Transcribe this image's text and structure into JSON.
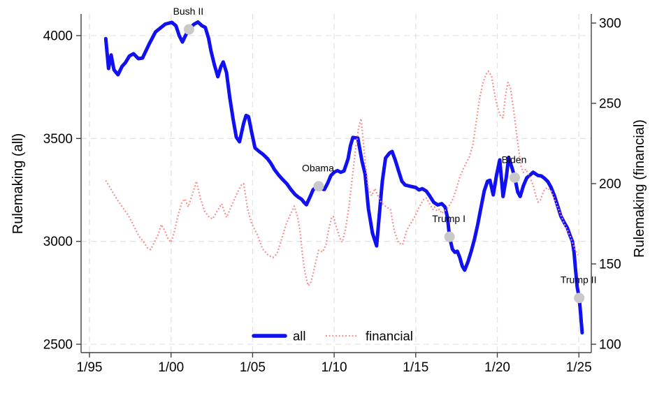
{
  "figure": {
    "background": "#ffffff"
  },
  "chart_data": {
    "type": "line",
    "title": "",
    "x_axis": {
      "tick_values": [
        1995,
        2000,
        2005,
        2010,
        2015,
        2020,
        2025
      ],
      "tick_labels": [
        "1/95",
        "1/00",
        "1/05",
        "1/10",
        "1/15",
        "1/20",
        "1/25"
      ],
      "range_years": [
        1994.5,
        2025.8
      ],
      "grid": true
    },
    "y_left_axis": {
      "title": "Rulemaking (all)",
      "tick_values": [
        2500,
        3000,
        3500,
        4000
      ],
      "range": [
        2460,
        4105
      ],
      "grid": true
    },
    "y_right_axis": {
      "title": "Rulemaking (financial)",
      "tick_values": [
        100,
        150,
        200,
        250,
        300
      ],
      "range": [
        95,
        318
      ],
      "grid": false
    },
    "legend": {
      "position": "bottom-center-inside",
      "items": [
        {
          "label": "all",
          "style": "solid",
          "color": "#1010f0"
        },
        {
          "label": "financial",
          "style": "dotted",
          "color": "#f88b8b"
        }
      ]
    },
    "styles": {
      "all_color": "#1010f0",
      "financial_color": "#f88b8b",
      "marker_color": "#c9c9c9",
      "grid_color": "#e3e3e3",
      "axis_color": "#404040",
      "text_color": "#000000"
    },
    "annotations": [
      {
        "label": "Bush II",
        "year": 2001.1,
        "value": 4030
      },
      {
        "label": "Obama",
        "year": 2009.05,
        "value": 3268
      },
      {
        "label": "Trump I",
        "year": 2017.07,
        "value": 3022
      },
      {
        "label": "Biden",
        "year": 2021.07,
        "value": 3310
      },
      {
        "label": "Trump II",
        "year": 2025.02,
        "value": 2725
      }
    ],
    "series": [
      {
        "name": "all",
        "axis": "left",
        "style": "solid",
        "width": 5,
        "color": "#1010f0",
        "points": [
          [
            1996.0,
            3985
          ],
          [
            1996.17,
            3840
          ],
          [
            1996.33,
            3906
          ],
          [
            1996.5,
            3834
          ],
          [
            1996.75,
            3810
          ],
          [
            1997.0,
            3851
          ],
          [
            1997.2,
            3868
          ],
          [
            1997.45,
            3901
          ],
          [
            1997.7,
            3912
          ],
          [
            1998.0,
            3888
          ],
          [
            1998.25,
            3891
          ],
          [
            1998.65,
            3958
          ],
          [
            1999.05,
            4018
          ],
          [
            1999.35,
            4037
          ],
          [
            1999.65,
            4056
          ],
          [
            2000.05,
            4064
          ],
          [
            2000.3,
            4048
          ],
          [
            2000.5,
            4000
          ],
          [
            2000.7,
            3969
          ],
          [
            2000.9,
            4002
          ],
          [
            2001.1,
            4030
          ],
          [
            2001.4,
            4055
          ],
          [
            2001.65,
            4066
          ],
          [
            2001.9,
            4048
          ],
          [
            2002.1,
            4040
          ],
          [
            2002.3,
            3987
          ],
          [
            2002.45,
            3925
          ],
          [
            2002.65,
            3860
          ],
          [
            2002.87,
            3800
          ],
          [
            2003.05,
            3848
          ],
          [
            2003.2,
            3872
          ],
          [
            2003.4,
            3820
          ],
          [
            2003.6,
            3700
          ],
          [
            2003.8,
            3596
          ],
          [
            2004.0,
            3506
          ],
          [
            2004.2,
            3484
          ],
          [
            2004.45,
            3574
          ],
          [
            2004.6,
            3612
          ],
          [
            2004.75,
            3606
          ],
          [
            2004.95,
            3528
          ],
          [
            2005.15,
            3454
          ],
          [
            2005.4,
            3437
          ],
          [
            2005.65,
            3422
          ],
          [
            2005.9,
            3403
          ],
          [
            2006.1,
            3382
          ],
          [
            2006.35,
            3348
          ],
          [
            2006.6,
            3322
          ],
          [
            2006.85,
            3300
          ],
          [
            2007.1,
            3280
          ],
          [
            2007.35,
            3252
          ],
          [
            2007.6,
            3228
          ],
          [
            2007.8,
            3215
          ],
          [
            2008.0,
            3205
          ],
          [
            2008.15,
            3190
          ],
          [
            2008.3,
            3178
          ],
          [
            2008.55,
            3222
          ],
          [
            2008.7,
            3250
          ],
          [
            2008.85,
            3262
          ],
          [
            2009.05,
            3268
          ],
          [
            2009.25,
            3255
          ],
          [
            2009.4,
            3252
          ],
          [
            2009.6,
            3283
          ],
          [
            2009.8,
            3320
          ],
          [
            2010.0,
            3336
          ],
          [
            2010.2,
            3344
          ],
          [
            2010.4,
            3336
          ],
          [
            2010.6,
            3342
          ],
          [
            2010.85,
            3400
          ],
          [
            2011.0,
            3465
          ],
          [
            2011.15,
            3505
          ],
          [
            2011.45,
            3502
          ],
          [
            2011.7,
            3392
          ],
          [
            2011.9,
            3326
          ],
          [
            2012.1,
            3158
          ],
          [
            2012.35,
            3040
          ],
          [
            2012.6,
            2978
          ],
          [
            2012.8,
            3160
          ],
          [
            2012.95,
            3292
          ],
          [
            2013.15,
            3405
          ],
          [
            2013.4,
            3430
          ],
          [
            2013.55,
            3437
          ],
          [
            2013.75,
            3394
          ],
          [
            2013.95,
            3342
          ],
          [
            2014.15,
            3292
          ],
          [
            2014.35,
            3274
          ],
          [
            2014.65,
            3268
          ],
          [
            2015.0,
            3262
          ],
          [
            2015.2,
            3250
          ],
          [
            2015.4,
            3256
          ],
          [
            2015.65,
            3244
          ],
          [
            2015.85,
            3222
          ],
          [
            2016.1,
            3190
          ],
          [
            2016.35,
            3177
          ],
          [
            2016.6,
            3183
          ],
          [
            2016.8,
            3167
          ],
          [
            2016.95,
            3115
          ],
          [
            2017.07,
            3022
          ],
          [
            2017.25,
            2962
          ],
          [
            2017.4,
            2947
          ],
          [
            2017.55,
            2952
          ],
          [
            2017.7,
            2922
          ],
          [
            2017.85,
            2880
          ],
          [
            2018.0,
            2860
          ],
          [
            2018.2,
            2900
          ],
          [
            2018.4,
            2952
          ],
          [
            2018.6,
            3010
          ],
          [
            2018.8,
            3082
          ],
          [
            2019.0,
            3165
          ],
          [
            2019.2,
            3245
          ],
          [
            2019.4,
            3292
          ],
          [
            2019.55,
            3297
          ],
          [
            2019.75,
            3226
          ],
          [
            2019.95,
            3320
          ],
          [
            2020.15,
            3396
          ],
          [
            2020.35,
            3218
          ],
          [
            2020.55,
            3310
          ],
          [
            2020.7,
            3408
          ],
          [
            2020.9,
            3358
          ],
          [
            2021.07,
            3310
          ],
          [
            2021.25,
            3240
          ],
          [
            2021.4,
            3218
          ],
          [
            2021.6,
            3270
          ],
          [
            2021.8,
            3308
          ],
          [
            2022.2,
            3336
          ],
          [
            2022.5,
            3320
          ],
          [
            2022.7,
            3318
          ],
          [
            2022.9,
            3306
          ],
          [
            2023.1,
            3290
          ],
          [
            2023.3,
            3262
          ],
          [
            2023.5,
            3222
          ],
          [
            2023.7,
            3172
          ],
          [
            2023.9,
            3122
          ],
          [
            2024.1,
            3092
          ],
          [
            2024.3,
            3064
          ],
          [
            2024.45,
            3030
          ],
          [
            2024.6,
            3000
          ],
          [
            2024.7,
            2950
          ],
          [
            2024.8,
            2860
          ],
          [
            2024.9,
            2776
          ],
          [
            2025.02,
            2725
          ],
          [
            2025.1,
            2656
          ],
          [
            2025.2,
            2556
          ]
        ]
      },
      {
        "name": "financial",
        "axis": "right",
        "style": "dotted",
        "width": 2.3,
        "color": "#f88b8b",
        "points": [
          [
            1996.0,
            202
          ],
          [
            1996.35,
            196
          ],
          [
            1996.7,
            190
          ],
          [
            1997.05,
            185
          ],
          [
            1997.4,
            180
          ],
          [
            1997.75,
            173
          ],
          [
            1998.05,
            167
          ],
          [
            1998.3,
            164
          ],
          [
            1998.55,
            160
          ],
          [
            1998.75,
            159
          ],
          [
            1999.0,
            164
          ],
          [
            1999.2,
            168
          ],
          [
            1999.4,
            174.5
          ],
          [
            1999.6,
            171
          ],
          [
            1999.8,
            166
          ],
          [
            2000.0,
            163.5
          ],
          [
            2000.2,
            170
          ],
          [
            2000.4,
            179
          ],
          [
            2000.65,
            188
          ],
          [
            2000.85,
            190.5
          ],
          [
            2001.05,
            185.5
          ],
          [
            2001.3,
            193
          ],
          [
            2001.55,
            201.5
          ],
          [
            2001.8,
            191
          ],
          [
            2002.05,
            183
          ],
          [
            2002.3,
            179.5
          ],
          [
            2002.55,
            178
          ],
          [
            2002.8,
            182.5
          ],
          [
            2003.1,
            187.5
          ],
          [
            2003.4,
            179
          ],
          [
            2003.7,
            186
          ],
          [
            2004.0,
            193
          ],
          [
            2004.3,
            199
          ],
          [
            2004.45,
            200
          ],
          [
            2004.7,
            184
          ],
          [
            2004.95,
            175
          ],
          [
            2005.3,
            168
          ],
          [
            2005.6,
            159.5
          ],
          [
            2005.95,
            155.5
          ],
          [
            2006.25,
            154
          ],
          [
            2006.5,
            156.5
          ],
          [
            2006.8,
            166
          ],
          [
            2007.05,
            174.5
          ],
          [
            2007.3,
            180.5
          ],
          [
            2007.55,
            186
          ],
          [
            2007.75,
            179.5
          ],
          [
            2007.9,
            171
          ],
          [
            2008.05,
            156.5
          ],
          [
            2008.2,
            145
          ],
          [
            2008.4,
            136.5
          ],
          [
            2008.55,
            138
          ],
          [
            2008.7,
            143.5
          ],
          [
            2008.85,
            150.5
          ],
          [
            2009.05,
            158.5
          ],
          [
            2009.3,
            157.5
          ],
          [
            2009.5,
            162
          ],
          [
            2009.65,
            171
          ],
          [
            2009.85,
            179
          ],
          [
            2009.95,
            179.5
          ],
          [
            2010.15,
            172.5
          ],
          [
            2010.35,
            166
          ],
          [
            2010.5,
            163.5
          ],
          [
            2010.7,
            172
          ],
          [
            2010.9,
            185
          ],
          [
            2011.1,
            203
          ],
          [
            2011.3,
            220
          ],
          [
            2011.5,
            235
          ],
          [
            2011.65,
            240.5
          ],
          [
            2011.9,
            214
          ],
          [
            2012.1,
            197
          ],
          [
            2012.3,
            192.5
          ],
          [
            2012.5,
            197
          ],
          [
            2012.7,
            192
          ],
          [
            2012.9,
            188
          ],
          [
            2013.2,
            185.5
          ],
          [
            2013.45,
            184
          ],
          [
            2013.7,
            170
          ],
          [
            2013.95,
            163
          ],
          [
            2014.2,
            162
          ],
          [
            2014.45,
            171
          ],
          [
            2014.65,
            174.5
          ],
          [
            2015.0,
            180.5
          ],
          [
            2015.15,
            184
          ],
          [
            2015.3,
            187
          ],
          [
            2015.5,
            190.5
          ],
          [
            2015.65,
            191
          ],
          [
            2015.85,
            187.5
          ],
          [
            2016.05,
            184
          ],
          [
            2016.15,
            185.5
          ],
          [
            2016.3,
            183
          ],
          [
            2016.45,
            184
          ],
          [
            2016.6,
            181.5
          ],
          [
            2016.75,
            183
          ],
          [
            2016.9,
            184
          ],
          [
            2017.1,
            187
          ],
          [
            2017.3,
            191
          ],
          [
            2017.5,
            197
          ],
          [
            2017.7,
            204
          ],
          [
            2017.9,
            209
          ],
          [
            2018.1,
            213
          ],
          [
            2018.3,
            217
          ],
          [
            2018.5,
            224
          ],
          [
            2018.7,
            238
          ],
          [
            2018.9,
            252
          ],
          [
            2019.1,
            262
          ],
          [
            2019.3,
            268
          ],
          [
            2019.45,
            270
          ],
          [
            2019.65,
            267
          ],
          [
            2019.85,
            255
          ],
          [
            2020.0,
            248
          ],
          [
            2020.2,
            242
          ],
          [
            2020.35,
            241
          ],
          [
            2020.5,
            255
          ],
          [
            2020.65,
            263
          ],
          [
            2020.8,
            260
          ],
          [
            2021.0,
            246
          ],
          [
            2021.15,
            234
          ],
          [
            2021.3,
            222
          ],
          [
            2021.45,
            211
          ],
          [
            2021.6,
            207
          ],
          [
            2021.75,
            209
          ],
          [
            2022.0,
            204
          ],
          [
            2022.2,
            199
          ],
          [
            2022.35,
            193
          ],
          [
            2022.5,
            188.5
          ],
          [
            2022.65,
            190
          ],
          [
            2022.85,
            195.5
          ],
          [
            2023.05,
            197.5
          ],
          [
            2023.3,
            195.5
          ],
          [
            2023.5,
            190.5
          ],
          [
            2023.7,
            185.5
          ],
          [
            2023.9,
            180.5
          ],
          [
            2024.1,
            175
          ],
          [
            2024.3,
            171
          ],
          [
            2024.5,
            166.5
          ],
          [
            2024.65,
            162
          ],
          [
            2024.8,
            158.5
          ],
          [
            2024.95,
            155.5
          ]
        ]
      }
    ]
  }
}
